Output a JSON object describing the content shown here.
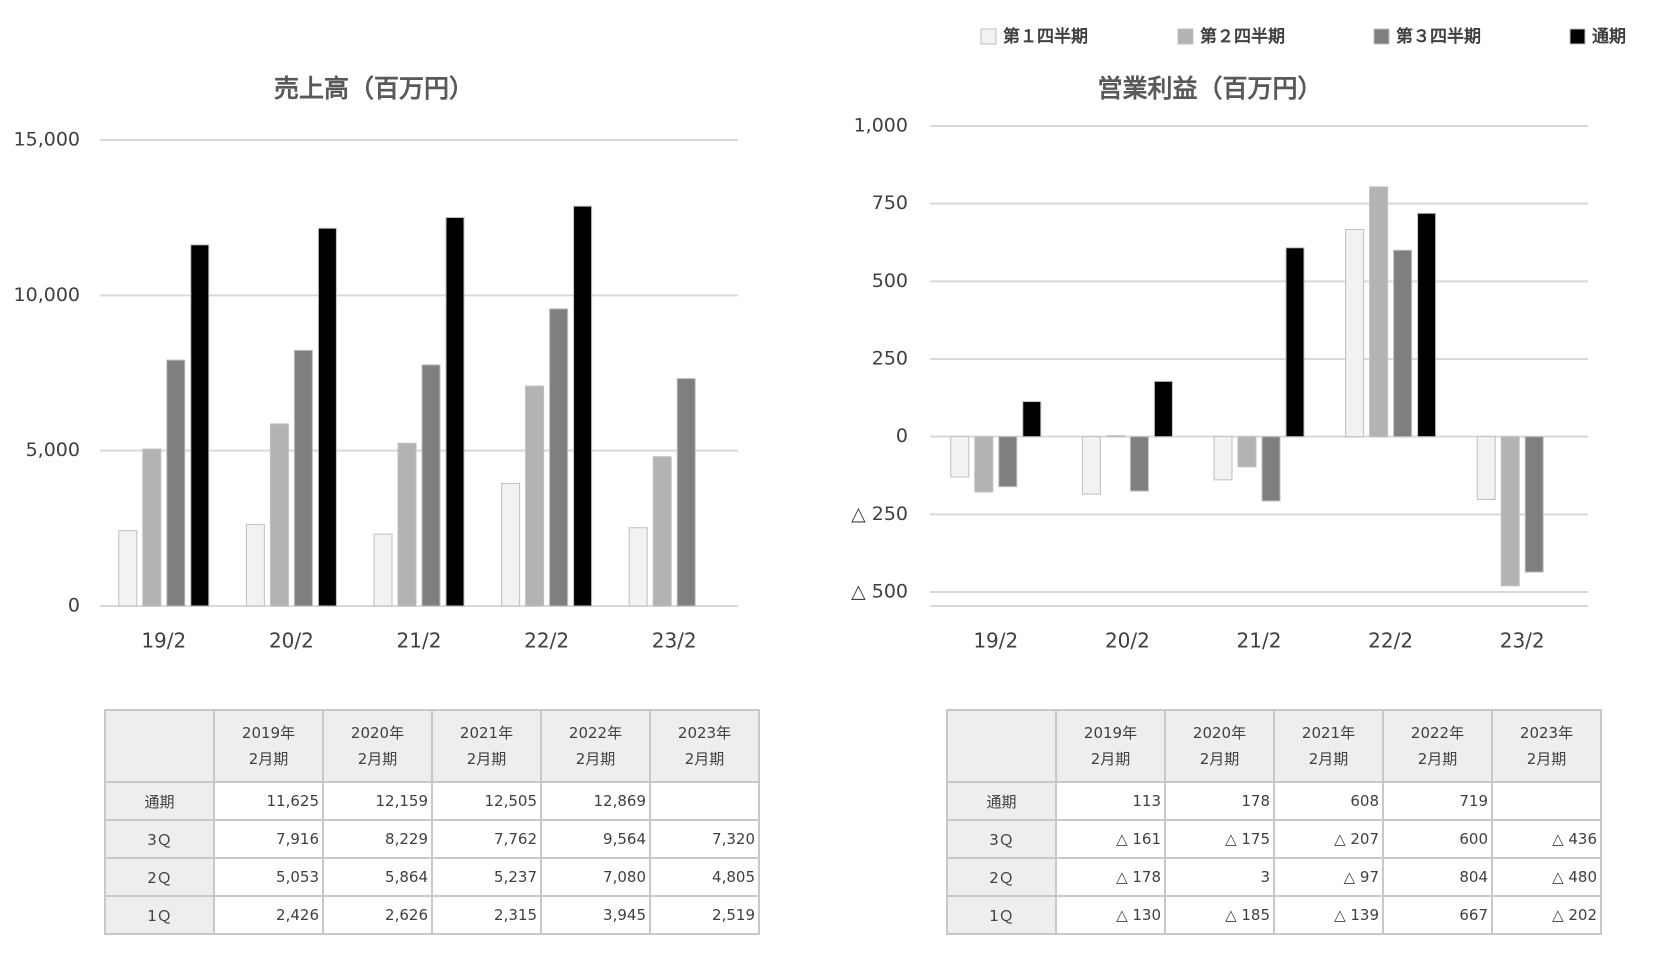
{
  "chart_data": [
    {
      "type": "bar",
      "title": "売上高（百万円）",
      "categories": [
        "19/2",
        "20/2",
        "21/2",
        "22/2",
        "23/2"
      ],
      "series": [
        {
          "color": "#f2f2f2",
          "values": [
            2426,
            2626,
            2315,
            3945,
            2519
          ]
        },
        {
          "color": "#b3b3b3",
          "values": [
            5053,
            5864,
            5237,
            7080,
            4805
          ]
        },
        {
          "color": "#7f7f7f",
          "values": [
            7916,
            8229,
            7762,
            9564,
            7320
          ]
        },
        {
          "color": "#000000",
          "values": [
            11625,
            12159,
            12505,
            12869,
            null
          ]
        }
      ],
      "ylim": [
        0,
        15000
      ],
      "yticks": [
        0,
        {
          "value": 5000,
          "label": "5,000"
        },
        {
          "value": 10000,
          "label": "10,000"
        },
        {
          "value": 15000,
          "label": "15,000"
        }
      ],
      "grid": true
    },
    {
      "type": "bar",
      "title": "営業利益（百万円）",
      "categories": [
        "19/2",
        "20/2",
        "21/2",
        "22/2",
        "23/2"
      ],
      "series": [
        {
          "name": "第１四半期",
          "color": "#f2f2f2",
          "values": [
            -130,
            -185,
            -139,
            667,
            -202
          ]
        },
        {
          "name": "第２四半期",
          "color": "#b3b3b3",
          "values": [
            -178,
            3,
            -97,
            804,
            -480
          ]
        },
        {
          "name": "第３四半期",
          "color": "#7f7f7f",
          "values": [
            -161,
            -175,
            -207,
            600,
            -436
          ]
        },
        {
          "name": "通期",
          "color": "#000000",
          "values": [
            113,
            178,
            608,
            719,
            null
          ]
        }
      ],
      "ylim": [
        -500,
        1000
      ],
      "yticks": [
        {
          "value": -500,
          "label": "△ 500"
        },
        {
          "value": -250,
          "label": "△ 250"
        },
        0,
        250,
        500,
        750,
        {
          "value": 1000,
          "label": "1,000"
        }
      ],
      "grid": true,
      "legend": "top"
    }
  ],
  "tables": [
    {
      "header": [
        [
          "2019年",
          "2月期"
        ],
        [
          "2020年",
          "2月期"
        ],
        [
          "2021年",
          "2月期"
        ],
        [
          "2022年",
          "2月期"
        ],
        [
          "2023年",
          "2月期"
        ]
      ],
      "rows": [
        [
          "通期",
          "11,625",
          "12,159",
          "12,505",
          "12,869",
          null
        ],
        [
          "3Ｑ",
          "7,916",
          "8,229",
          "7,762",
          "9,564",
          "7,320"
        ],
        [
          "2Ｑ",
          "5,053",
          "5,864",
          "5,237",
          "7,080",
          "4,805"
        ],
        [
          "1Ｑ",
          "2,426",
          "2,626",
          "2,315",
          "3,945",
          "2,519"
        ]
      ]
    },
    {
      "header": [
        [
          "2019年",
          "2月期"
        ],
        [
          "2020年",
          "2月期"
        ],
        [
          "2021年",
          "2月期"
        ],
        [
          "2022年",
          "2月期"
        ],
        [
          "2023年",
          "2月期"
        ]
      ],
      "rows": [
        [
          "通期",
          "113",
          "178",
          "608",
          "719",
          null
        ],
        [
          "3Ｑ",
          "△ 161",
          "△ 175",
          "△ 207",
          "600",
          "△ 436"
        ],
        [
          "2Ｑ",
          "△ 178",
          "3",
          "△ 97",
          "804",
          "△ 480"
        ],
        [
          "1Ｑ",
          "△ 130",
          "△ 185",
          "△ 139",
          "667",
          "△ 202"
        ]
      ]
    }
  ]
}
